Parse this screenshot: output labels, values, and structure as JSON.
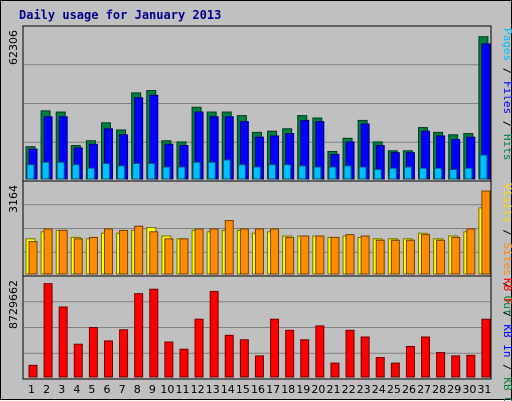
{
  "chart_data": {
    "type": "bar",
    "title": "Daily usage for January 2013",
    "categories": [
      "1",
      "2",
      "3",
      "4",
      "5",
      "6",
      "7",
      "8",
      "9",
      "10",
      "11",
      "12",
      "13",
      "14",
      "15",
      "16",
      "17",
      "18",
      "19",
      "20",
      "21",
      "22",
      "23",
      "24",
      "25",
      "26",
      "27",
      "28",
      "29",
      "30",
      "31"
    ],
    "weekend_days": [
      "5",
      "6",
      "12",
      "13",
      "19",
      "20",
      "26",
      "27"
    ],
    "panels": [
      {
        "name": "top",
        "y_max_label": "62306",
        "ymax": 62306,
        "right_label": [
          {
            "text": "Pages",
            "color": "#00bfff"
          },
          {
            "text": " / ",
            "color": "#000000"
          },
          {
            "text": "Files",
            "color": "#0000ff"
          },
          {
            "text": " / ",
            "color": "#000000"
          },
          {
            "text": "Hits",
            "color": "#008040"
          }
        ],
        "series": [
          {
            "name": "Hits",
            "color": "#008040",
            "values": [
              13500,
              28500,
              28000,
              14000,
              16000,
              23500,
              20500,
              36000,
              37000,
              16000,
              15500,
              30000,
              28000,
              28000,
              26500,
              19500,
              20000,
              21000,
              26500,
              25500,
              11500,
              17000,
              24500,
              15500,
              11800,
              11800,
              21500,
              19500,
              18500,
              19000,
              59500
            ]
          },
          {
            "name": "Files",
            "color": "#0000ff",
            "values": [
              12500,
              26000,
              26000,
              13000,
              14500,
              21000,
              18500,
              34000,
              35000,
              14500,
              14000,
              28000,
              26000,
              26000,
              24000,
              17500,
              18000,
              19000,
              24500,
              24000,
              10300,
              15500,
              23000,
              14000,
              11000,
              11000,
              20000,
              18000,
              16500,
              17500,
              56500
            ]
          },
          {
            "name": "Pages",
            "color": "#00bfff",
            "values": [
              6000,
              7000,
              7000,
              6000,
              4500,
              6500,
              5500,
              6500,
              6500,
              5000,
              5000,
              7000,
              7000,
              8000,
              6000,
              5000,
              6000,
              6000,
              5500,
              5000,
              5000,
              5500,
              5000,
              4000,
              4500,
              5000,
              4500,
              4500,
              4000,
              4500,
              10000
            ]
          }
        ]
      },
      {
        "name": "middle",
        "y_max_label": "3164",
        "ymax": 3164,
        "right_label": [
          {
            "text": "Visits",
            "color": "#ffd700"
          },
          {
            "text": " / ",
            "color": "#000000"
          },
          {
            "text": "Sites",
            "color": "#ff8c00"
          },
          {
            "text": " / ",
            "color": "#000000"
          },
          {
            "text": "Out",
            "color": "#008040"
          }
        ],
        "series": [
          {
            "name": "Visits",
            "color": "#ffff00",
            "values": [
              1250,
              1500,
              1550,
              1300,
              1250,
              1450,
              1450,
              1550,
              1650,
              1350,
              1250,
              1550,
              1500,
              1550,
              1550,
              1450,
              1500,
              1350,
              1350,
              1350,
              1300,
              1350,
              1300,
              1250,
              1250,
              1250,
              1450,
              1250,
              1350,
              1500,
              2350
            ]
          },
          {
            "name": "Sites",
            "color": "#ff8c00",
            "values": [
              1150,
              1600,
              1550,
              1250,
              1300,
              1600,
              1550,
              1700,
              1500,
              1250,
              1250,
              1600,
              1600,
              1900,
              1600,
              1600,
              1600,
              1300,
              1350,
              1350,
              1300,
              1400,
              1350,
              1200,
              1200,
              1200,
              1400,
              1200,
              1300,
              1600,
              2950
            ]
          }
        ]
      },
      {
        "name": "bottom",
        "y_max_label": "8729662",
        "ymax": 8729662,
        "right_label": [
          {
            "text": "KB F",
            "color": "#ff0000"
          },
          {
            "text": " / ",
            "color": "#000000"
          },
          {
            "text": "KB In",
            "color": "#0000ff"
          },
          {
            "text": " / ",
            "color": "#000000"
          },
          {
            "text": "KB Out",
            "color": "#008040"
          }
        ],
        "series": [
          {
            "name": "KBytes",
            "color": "#ff0000",
            "values": [
              1050000,
              8400000,
              6300000,
              2950000,
              4450000,
              3250000,
              4250000,
              7500000,
              7900000,
              3150000,
              2500000,
              5200000,
              7700000,
              3750000,
              3350000,
              1900000,
              5200000,
              4200000,
              3350000,
              4600000,
              1250000,
              4200000,
              3600000,
              1750000,
              1250000,
              2750000,
              3600000,
              2200000,
              1900000,
              1950000,
              5200000
            ]
          }
        ]
      }
    ]
  }
}
